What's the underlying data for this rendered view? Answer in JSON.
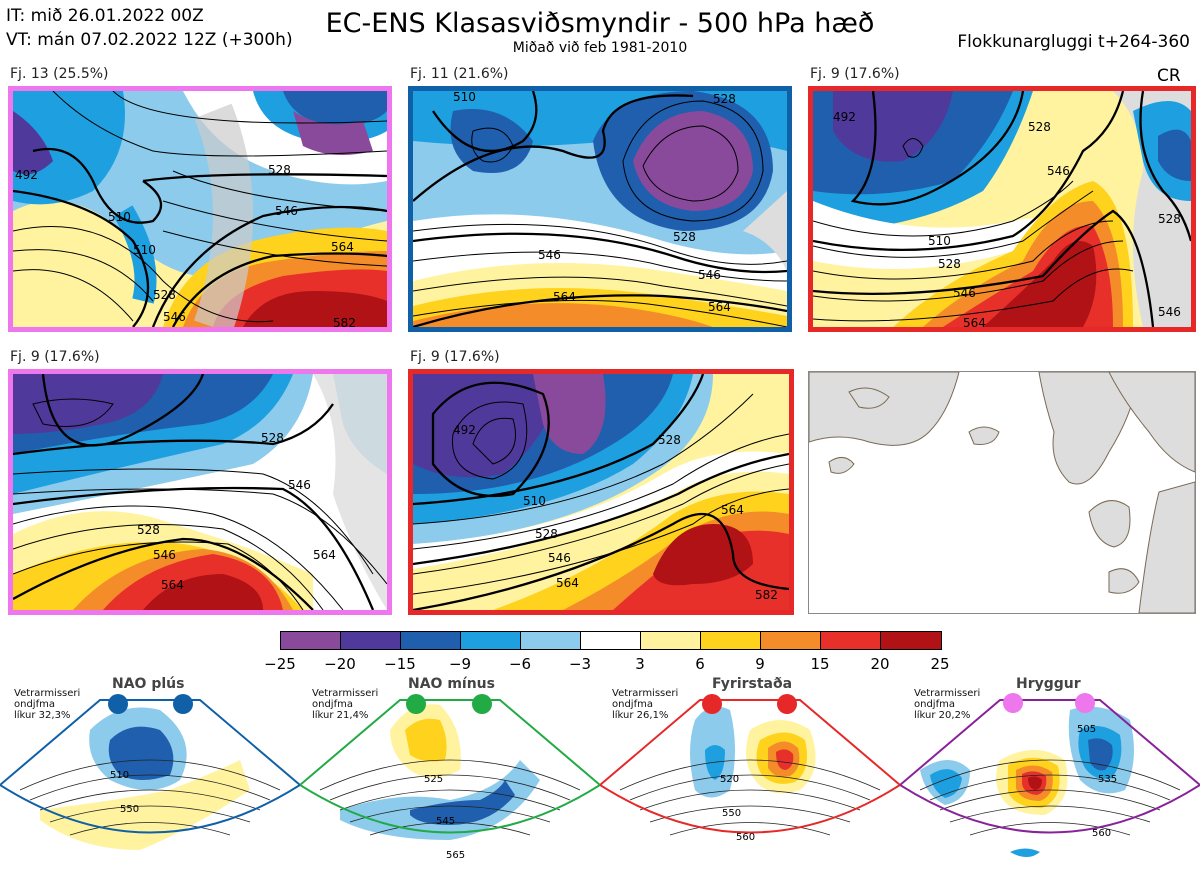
{
  "header": {
    "it_line": "IT: mið 26.01.2022 00Z",
    "vt_line": "VT: mán 07.02.2022 12Z  (+300h)",
    "title": "EC-ENS Klasasviðsmyndir - 500 hPa hæð",
    "subtitle": "Miðað við feb 1981-2010",
    "window": "Flokkunargluggi t+264-360",
    "cr": "CR"
  },
  "panels": [
    {
      "label": "Fj. 13 (25.5%)",
      "border": "#ee77ee",
      "contours": [
        "492",
        "510",
        "510",
        "528",
        "546",
        "564",
        "528",
        "546",
        "582"
      ]
    },
    {
      "label": "Fj. 11 (21.6%)",
      "border": "#1060a8",
      "contours": [
        "528",
        "510",
        "528",
        "546",
        "546",
        "564",
        "564"
      ]
    },
    {
      "label": "Fj. 9 (17.6%)",
      "border": "#e62828",
      "contours": [
        "492",
        "528",
        "546",
        "510",
        "528",
        "546",
        "564",
        "546",
        "528"
      ]
    },
    {
      "label": "Fj. 9 (17.6%)",
      "border": "#ee77ee",
      "contours": [
        "528",
        "546",
        "528",
        "546",
        "564",
        "564"
      ]
    },
    {
      "label": "Fj. 9 (17.6%)",
      "border": "#e62828",
      "contours": [
        "492",
        "510",
        "528",
        "546",
        "564",
        "564",
        "582",
        "528"
      ]
    }
  ],
  "colorbar": {
    "ticks": [
      "−25",
      "−20",
      "−15",
      "−9",
      "−6",
      "−3",
      "3",
      "6",
      "9",
      "15",
      "20",
      "25"
    ],
    "colors": [
      "#8a4a9c",
      "#4f3a9c",
      "#1f5fae",
      "#1ea0e0",
      "#8ccbec",
      "#ffffff",
      "#fff3a0",
      "#ffd21e",
      "#f58c2a",
      "#e8302a",
      "#b01216"
    ]
  },
  "regimes": [
    {
      "name": "NAO plús",
      "prob1": "Vetrarmisseri",
      "prob2": "ondjfma",
      "prob3": "líkur 32,3%",
      "contours": [
        "510",
        "550"
      ],
      "color": "#1060a8",
      "dot": "#1060a8"
    },
    {
      "name": "NAO mínus",
      "prob1": "Vetrarmisseri",
      "prob2": "ondjfma",
      "prob3": "líkur 21,4%",
      "contours": [
        "525",
        "545",
        "565"
      ],
      "color": "#22aa44",
      "dot": "#22aa44"
    },
    {
      "name": "Fyrirstaða",
      "prob1": "Vetrarmisseri",
      "prob2": "ondjfma",
      "prob3": "líkur 26,1%",
      "contours": [
        "520",
        "550",
        "560"
      ],
      "color": "#e62828",
      "dot": "#e62828"
    },
    {
      "name": "Hryggur",
      "prob1": "Vetrarmisseri",
      "prob2": "ondjfma",
      "prob3": "líkur 20,2%",
      "contours": [
        "505",
        "535",
        "560"
      ],
      "color": "#882299",
      "dot": "#ee77ee"
    }
  ]
}
